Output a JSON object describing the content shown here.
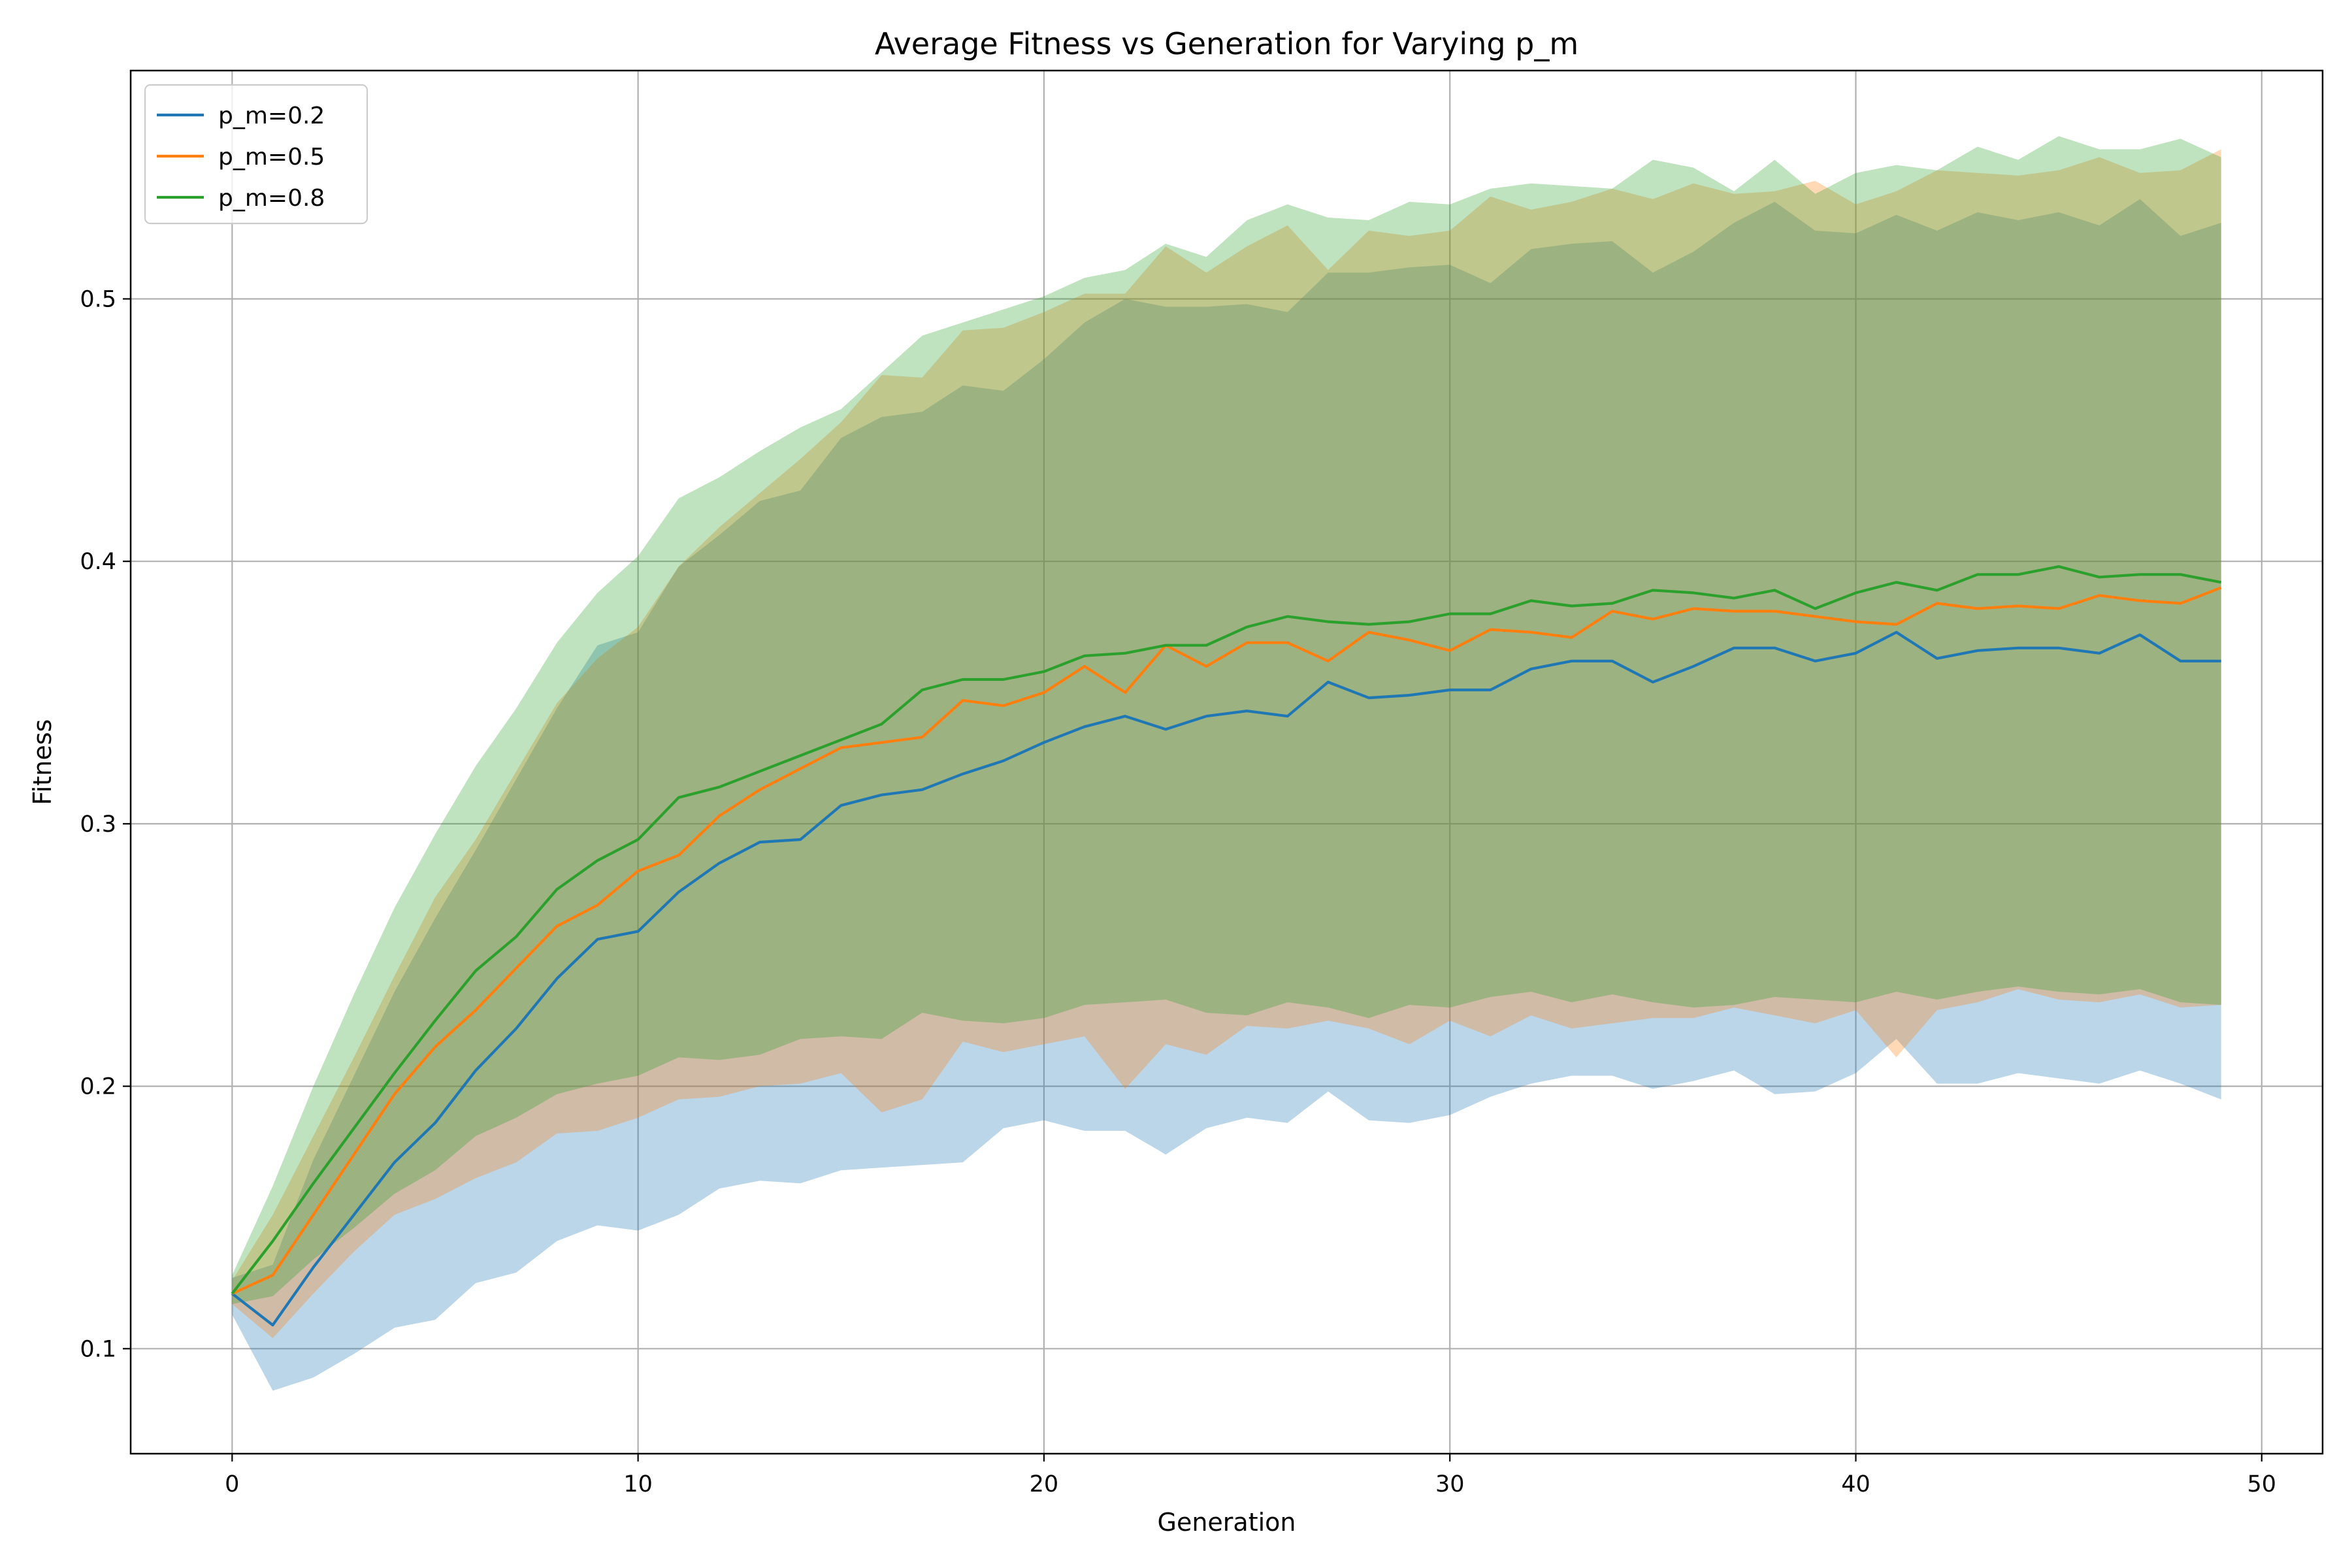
{
  "chart_data": {
    "type": "line",
    "title": "Average Fitness vs Generation for Varying p_m",
    "xlabel": "Generation",
    "ylabel": "Fitness",
    "xlim": [
      -2.5,
      51.5
    ],
    "ylim": [
      0.06,
      0.587
    ],
    "xticks": [
      0,
      10,
      20,
      30,
      40,
      50
    ],
    "yticks": [
      0.1,
      0.2,
      0.3,
      0.4,
      0.5
    ],
    "grid": true,
    "legend_position": "top-left",
    "series": [
      {
        "name": "p_m=0.2",
        "color": "#1f77b4",
        "band_color": "#1f77b4",
        "mean": [
          0.121,
          0.109,
          0.131,
          0.151,
          0.171,
          0.186,
          0.206,
          0.222,
          0.241,
          0.256,
          0.259,
          0.274,
          0.285,
          0.293,
          0.294,
          0.307,
          0.311,
          0.313,
          0.319,
          0.324,
          0.331,
          0.337,
          0.341,
          0.336,
          0.341,
          0.343,
          0.341,
          0.354,
          0.348,
          0.349,
          0.351,
          0.351,
          0.359,
          0.362,
          0.362,
          0.354,
          0.36,
          0.367,
          0.367,
          0.362,
          0.365,
          0.373,
          0.363,
          0.366,
          0.367,
          0.367,
          0.365,
          0.372,
          0.362,
          0.362
        ],
        "lower": [
          0.113,
          0.084,
          0.089,
          0.098,
          0.108,
          0.111,
          0.125,
          0.129,
          0.141,
          0.147,
          0.145,
          0.151,
          0.161,
          0.164,
          0.163,
          0.168,
          0.169,
          0.17,
          0.171,
          0.184,
          0.187,
          0.183,
          0.183,
          0.174,
          0.184,
          0.188,
          0.186,
          0.198,
          0.187,
          0.186,
          0.189,
          0.196,
          0.201,
          0.204,
          0.204,
          0.199,
          0.202,
          0.206,
          0.197,
          0.198,
          0.205,
          0.218,
          0.201,
          0.201,
          0.205,
          0.203,
          0.201,
          0.206,
          0.201,
          0.195
        ],
        "upper": [
          0.127,
          0.132,
          0.172,
          0.204,
          0.236,
          0.264,
          0.29,
          0.317,
          0.344,
          0.368,
          0.373,
          0.398,
          0.41,
          0.423,
          0.427,
          0.447,
          0.455,
          0.457,
          0.467,
          0.465,
          0.477,
          0.491,
          0.5,
          0.497,
          0.497,
          0.498,
          0.495,
          0.51,
          0.51,
          0.512,
          0.513,
          0.506,
          0.519,
          0.521,
          0.522,
          0.51,
          0.518,
          0.529,
          0.537,
          0.526,
          0.525,
          0.532,
          0.526,
          0.533,
          0.53,
          0.533,
          0.528,
          0.538,
          0.524,
          0.529
        ]
      },
      {
        "name": "p_m=0.5",
        "color": "#ff7f0e",
        "band_color": "#ff7f0e",
        "mean": [
          0.121,
          0.128,
          0.151,
          0.174,
          0.197,
          0.215,
          0.229,
          0.245,
          0.261,
          0.269,
          0.282,
          0.288,
          0.303,
          0.313,
          0.321,
          0.329,
          0.331,
          0.333,
          0.347,
          0.345,
          0.35,
          0.36,
          0.35,
          0.368,
          0.36,
          0.369,
          0.369,
          0.362,
          0.373,
          0.37,
          0.366,
          0.374,
          0.373,
          0.371,
          0.381,
          0.378,
          0.382,
          0.381,
          0.381,
          0.379,
          0.377,
          0.376,
          0.384,
          0.382,
          0.383,
          0.382,
          0.387,
          0.385,
          0.384,
          0.39
        ],
        "lower": [
          0.117,
          0.104,
          0.121,
          0.137,
          0.151,
          0.157,
          0.165,
          0.171,
          0.182,
          0.183,
          0.188,
          0.195,
          0.196,
          0.2,
          0.201,
          0.205,
          0.19,
          0.195,
          0.217,
          0.213,
          0.216,
          0.219,
          0.199,
          0.216,
          0.212,
          0.223,
          0.222,
          0.225,
          0.222,
          0.216,
          0.225,
          0.219,
          0.227,
          0.222,
          0.224,
          0.226,
          0.226,
          0.23,
          0.227,
          0.224,
          0.229,
          0.211,
          0.229,
          0.232,
          0.237,
          0.233,
          0.232,
          0.235,
          0.23,
          0.231
        ],
        "upper": [
          0.126,
          0.151,
          0.181,
          0.211,
          0.242,
          0.272,
          0.294,
          0.32,
          0.346,
          0.363,
          0.375,
          0.398,
          0.413,
          0.426,
          0.439,
          0.453,
          0.471,
          0.47,
          0.488,
          0.489,
          0.495,
          0.502,
          0.502,
          0.52,
          0.51,
          0.52,
          0.528,
          0.511,
          0.526,
          0.524,
          0.526,
          0.539,
          0.534,
          0.537,
          0.542,
          0.538,
          0.544,
          0.54,
          0.541,
          0.545,
          0.536,
          0.541,
          0.549,
          0.548,
          0.547,
          0.549,
          0.554,
          0.548,
          0.549,
          0.557
        ]
      },
      {
        "name": "p_m=0.8",
        "color": "#2ca02c",
        "band_color": "#2ca02c",
        "mean": [
          0.121,
          0.141,
          0.163,
          0.184,
          0.205,
          0.225,
          0.244,
          0.257,
          0.275,
          0.286,
          0.294,
          0.31,
          0.314,
          0.32,
          0.326,
          0.332,
          0.338,
          0.351,
          0.355,
          0.355,
          0.358,
          0.364,
          0.365,
          0.368,
          0.368,
          0.375,
          0.379,
          0.377,
          0.376,
          0.377,
          0.38,
          0.38,
          0.385,
          0.383,
          0.384,
          0.389,
          0.388,
          0.386,
          0.389,
          0.382,
          0.388,
          0.392,
          0.389,
          0.395,
          0.395,
          0.398,
          0.394,
          0.395,
          0.395,
          0.392
        ],
        "lower": [
          0.117,
          0.12,
          0.134,
          0.146,
          0.159,
          0.168,
          0.181,
          0.188,
          0.197,
          0.201,
          0.204,
          0.211,
          0.21,
          0.212,
          0.218,
          0.219,
          0.218,
          0.228,
          0.225,
          0.224,
          0.226,
          0.231,
          0.232,
          0.233,
          0.228,
          0.227,
          0.232,
          0.23,
          0.226,
          0.231,
          0.23,
          0.234,
          0.236,
          0.232,
          0.235,
          0.232,
          0.23,
          0.231,
          0.234,
          0.233,
          0.232,
          0.236,
          0.233,
          0.236,
          0.238,
          0.236,
          0.235,
          0.237,
          0.232,
          0.231
        ],
        "upper": [
          0.128,
          0.162,
          0.2,
          0.235,
          0.268,
          0.296,
          0.322,
          0.344,
          0.369,
          0.388,
          0.402,
          0.424,
          0.432,
          0.442,
          0.451,
          0.458,
          0.472,
          0.486,
          0.491,
          0.496,
          0.501,
          0.508,
          0.511,
          0.521,
          0.516,
          0.53,
          0.536,
          0.531,
          0.53,
          0.537,
          0.536,
          0.542,
          0.544,
          0.543,
          0.542,
          0.553,
          0.55,
          0.541,
          0.553,
          0.54,
          0.548,
          0.551,
          0.549,
          0.558,
          0.553,
          0.562,
          0.557,
          0.557,
          0.561,
          0.554
        ]
      }
    ]
  }
}
